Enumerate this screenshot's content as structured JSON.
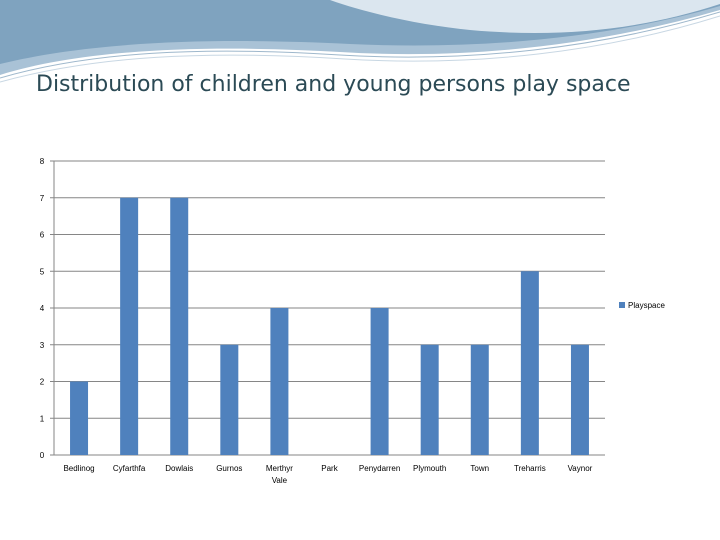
{
  "slide": {
    "title": "Distribution of children and young persons play space"
  },
  "colors": {
    "bar": "#4f81bd",
    "gridline": "#868686",
    "title": "#2b4a55",
    "header_wave_dark": "#7fa3bf",
    "header_wave_light": "#c9d9e6"
  },
  "chart_data": {
    "type": "bar",
    "title": "",
    "xlabel": "",
    "ylabel": "",
    "ylim": [
      0,
      8
    ],
    "yticks": [
      0,
      1,
      2,
      3,
      4,
      5,
      6,
      7,
      8
    ],
    "grid": true,
    "legend": "right",
    "categories": [
      "Bedlinog",
      "Cyfarthfa",
      "Dowlais",
      "Gurnos",
      "Merthyr Vale",
      "Park",
      "Penydarren",
      "Plymouth",
      "Town",
      "Treharris",
      "Vaynor"
    ],
    "series": [
      {
        "name": "Playspace",
        "values": [
          2,
          7,
          7,
          3,
          4,
          0,
          4,
          3,
          3,
          5,
          3
        ]
      }
    ]
  }
}
